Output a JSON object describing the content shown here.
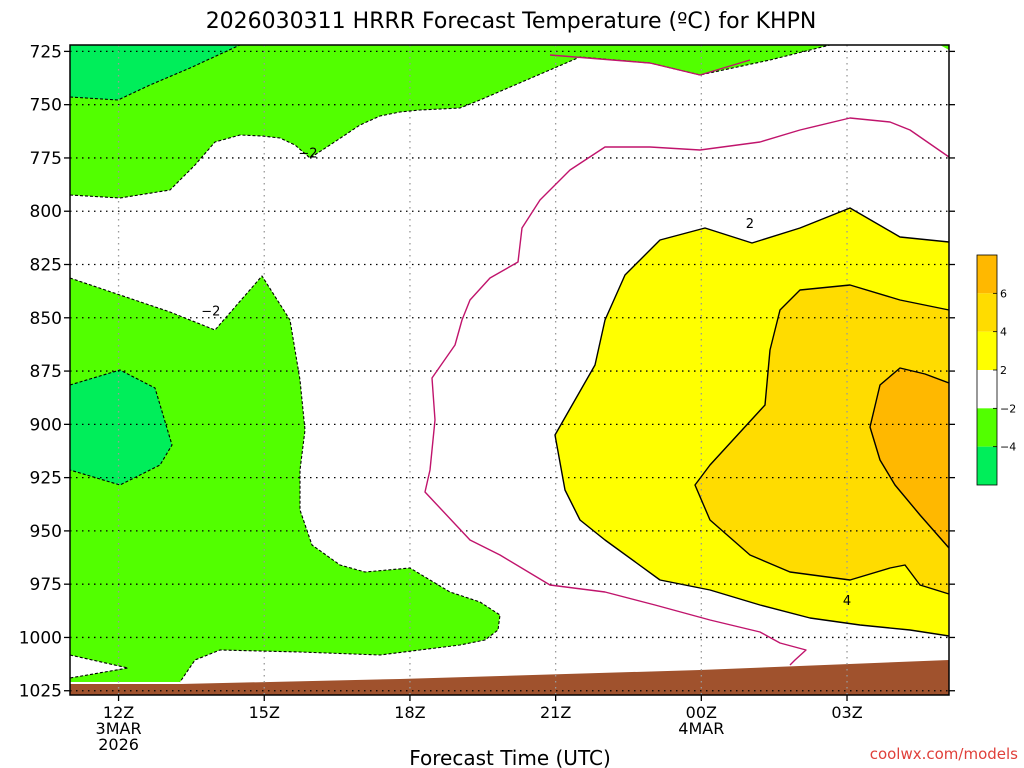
{
  "chart_data": {
    "type": "contour",
    "title": "2026030311 HRRR Forecast Temperature (ºC) for KHPN",
    "xlabel": "Forecast Time (UTC)",
    "ylabel": "",
    "credit": "coolwx.com/models",
    "y_axis": {
      "ticks": [
        725,
        750,
        775,
        800,
        825,
        850,
        875,
        900,
        925,
        950,
        975,
        1000,
        1025
      ],
      "range": [
        1027,
        722
      ],
      "unit": "hPa"
    },
    "x_axis": {
      "ticks": [
        {
          "hour": 12,
          "lines": [
            "12Z",
            "3MAR",
            "2026"
          ]
        },
        {
          "hour": 15,
          "lines": [
            "15Z"
          ]
        },
        {
          "hour": 18,
          "lines": [
            "18Z"
          ]
        },
        {
          "hour": 21,
          "lines": [
            "21Z"
          ]
        },
        {
          "hour": 24,
          "lines": [
            "00Z",
            "4MAR"
          ]
        },
        {
          "hour": 27,
          "lines": [
            "03Z"
          ]
        }
      ],
      "range": [
        11,
        29.1
      ]
    },
    "grid": true,
    "colorbar": {
      "levels": [
        6,
        4,
        2,
        -2,
        -4
      ],
      "labels": [
        "6",
        "4",
        "2",
        "−2",
        "−4"
      ],
      "colors": [
        "#ffb800",
        "#ffdc00",
        "#ffff00",
        "#ffffff",
        "#52ff00",
        "#00ee5a"
      ]
    },
    "contour_labels": [
      {
        "text": "−2",
        "hour": 15.9,
        "p": 773
      },
      {
        "text": "−2",
        "hour": 13.9,
        "p": 847
      },
      {
        "text": "2",
        "hour": 25.0,
        "p": 806
      },
      {
        "text": "4",
        "hour": 27.0,
        "p": 983
      }
    ],
    "colors": {
      "ground": "#a0522d",
      "cold": "#52ff00",
      "colder": "#00ee5a",
      "warm1": "#ffff00",
      "warm2": "#ffdc00",
      "warm3": "#ffb800",
      "zero_line": "#c0146c"
    }
  }
}
